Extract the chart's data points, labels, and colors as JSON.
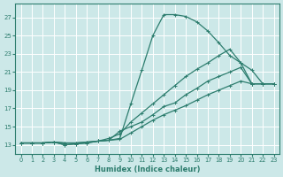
{
  "xlabel": "Humidex (Indice chaleur)",
  "bg_color": "#cce8e8",
  "grid_color": "#b8d8d8",
  "line_color": "#2d7d6e",
  "xlim": [
    -0.5,
    23.5
  ],
  "ylim": [
    12.0,
    28.5
  ],
  "xticks": [
    0,
    1,
    2,
    3,
    4,
    5,
    6,
    7,
    8,
    9,
    10,
    11,
    12,
    13,
    14,
    15,
    16,
    17,
    18,
    19,
    20,
    21,
    22,
    23
  ],
  "yticks": [
    13,
    15,
    17,
    19,
    21,
    23,
    25,
    27
  ],
  "lines": [
    [
      13.2,
      13.2,
      13.2,
      13.3,
      13.2,
      13.2,
      13.3,
      13.4,
      13.5,
      13.7,
      17.5,
      21.2,
      25.0,
      27.3,
      27.3,
      27.1,
      26.5,
      25.5,
      24.2,
      22.8,
      22.0,
      21.2,
      19.7,
      19.7
    ],
    [
      13.2,
      13.2,
      13.2,
      13.3,
      13.2,
      13.2,
      13.3,
      13.4,
      13.7,
      14.2,
      15.5,
      16.5,
      17.5,
      18.5,
      19.5,
      20.5,
      21.3,
      22.0,
      22.8,
      23.5,
      22.0,
      19.7,
      19.7,
      19.7
    ],
    [
      13.2,
      13.2,
      13.2,
      13.3,
      13.0,
      13.1,
      13.2,
      13.4,
      13.5,
      14.5,
      15.0,
      15.5,
      16.3,
      17.2,
      17.6,
      18.5,
      19.2,
      20.0,
      20.5,
      21.0,
      21.5,
      19.7,
      19.7,
      19.7
    ],
    [
      13.2,
      13.2,
      13.2,
      13.3,
      13.0,
      13.1,
      13.2,
      13.4,
      13.5,
      13.6,
      14.3,
      15.0,
      15.7,
      16.3,
      16.8,
      17.3,
      17.9,
      18.5,
      19.0,
      19.5,
      20.0,
      19.7,
      19.7,
      19.7
    ]
  ]
}
